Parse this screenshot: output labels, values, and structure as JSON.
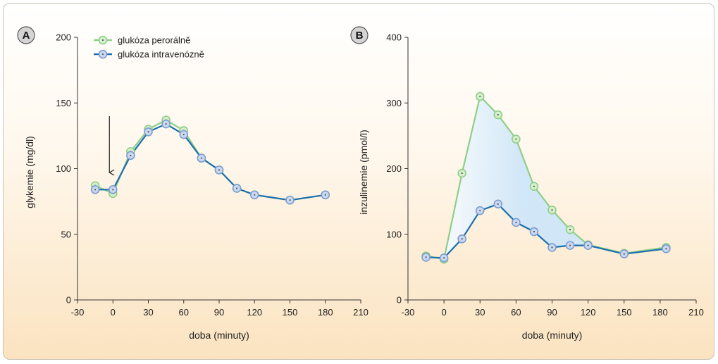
{
  "colors": {
    "oral_line": "#8fce8a",
    "oral_marker_fill": "#d6efcd",
    "iv_line": "#1b6fae",
    "iv_marker_fill": "#c9d9f2",
    "fill_area": "#cfe6f8",
    "axis": "#333333"
  },
  "legend": {
    "oral": "glukóza perorálně",
    "iv": "glukóza intravenózně"
  },
  "chart_data": [
    {
      "panel": "A",
      "type": "line",
      "xlabel": "doba (minuty)",
      "ylabel": "glykemie (mg/dl)",
      "xlim": [
        -30,
        210
      ],
      "ylim": [
        0,
        200
      ],
      "xticks": [
        -30,
        0,
        30,
        60,
        90,
        120,
        150,
        180,
        210
      ],
      "yticks": [
        0,
        50,
        100,
        150,
        200
      ],
      "annotation": "arrow at x=0",
      "series": [
        {
          "name": "glukóza perorálně",
          "x": [
            -15,
            0,
            15,
            30,
            45,
            60,
            75,
            90,
            105,
            120,
            150,
            180
          ],
          "y": [
            87,
            81,
            113,
            130,
            137,
            129,
            108,
            99,
            85,
            80,
            76,
            80
          ]
        },
        {
          "name": "glukóza intravenózně",
          "x": [
            -15,
            0,
            15,
            30,
            45,
            60,
            75,
            90,
            105,
            120,
            150,
            180
          ],
          "y": [
            84,
            84,
            110,
            128,
            134,
            126,
            108,
            99,
            85,
            80,
            76,
            80
          ]
        }
      ]
    },
    {
      "panel": "B",
      "type": "line",
      "xlabel": "doba (minuty)",
      "ylabel": "inzulinemie (pmol/l)",
      "xlim": [
        -30,
        210
      ],
      "ylim": [
        0,
        400
      ],
      "xticks": [
        -30,
        0,
        30,
        60,
        90,
        120,
        150,
        180,
        210
      ],
      "yticks": [
        0,
        100,
        200,
        300,
        400
      ],
      "shaded_between_series": true,
      "series": [
        {
          "name": "glukóza perorálně",
          "x": [
            -15,
            0,
            15,
            30,
            45,
            60,
            75,
            90,
            105,
            120,
            150,
            185
          ],
          "y": [
            67,
            62,
            193,
            310,
            282,
            245,
            173,
            137,
            107,
            84,
            71,
            80
          ]
        },
        {
          "name": "glukóza intravenózně",
          "x": [
            -15,
            0,
            15,
            30,
            45,
            60,
            75,
            90,
            105,
            120,
            150,
            185
          ],
          "y": [
            65,
            64,
            93,
            136,
            146,
            118,
            104,
            80,
            83,
            83,
            70,
            78
          ]
        }
      ]
    }
  ]
}
